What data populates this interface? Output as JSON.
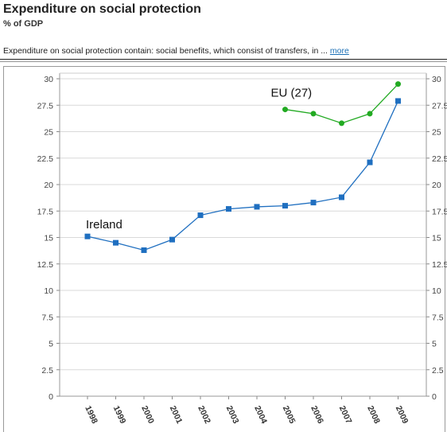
{
  "header": {
    "title": "Expenditure on social protection",
    "subtitle": "% of GDP"
  },
  "description": {
    "text": "Expenditure on social protection contain: social benefits, which consist of transfers, in ... ",
    "more_link": "more"
  },
  "chart_data": {
    "type": "line",
    "x": [
      "1998",
      "1999",
      "2000",
      "2001",
      "2002",
      "2003",
      "2004",
      "2005",
      "2006",
      "2007",
      "2008",
      "2009"
    ],
    "ylim": [
      0,
      30
    ],
    "yticks": [
      0,
      2.5,
      5,
      7.5,
      10,
      12.5,
      15,
      17.5,
      20,
      22.5,
      25,
      27.5,
      30
    ],
    "grid": true,
    "series": [
      {
        "name": "Ireland",
        "color": "#1f6fc0",
        "marker": "square",
        "values": [
          15.1,
          14.5,
          13.8,
          14.8,
          17.1,
          17.7,
          17.9,
          18.0,
          18.3,
          18.8,
          22.1,
          27.9
        ]
      },
      {
        "name": "EU (27)",
        "color": "#22aa22",
        "marker": "circle",
        "values": [
          null,
          null,
          null,
          null,
          null,
          null,
          null,
          27.1,
          26.7,
          25.8,
          26.7,
          29.5
        ]
      }
    ]
  }
}
